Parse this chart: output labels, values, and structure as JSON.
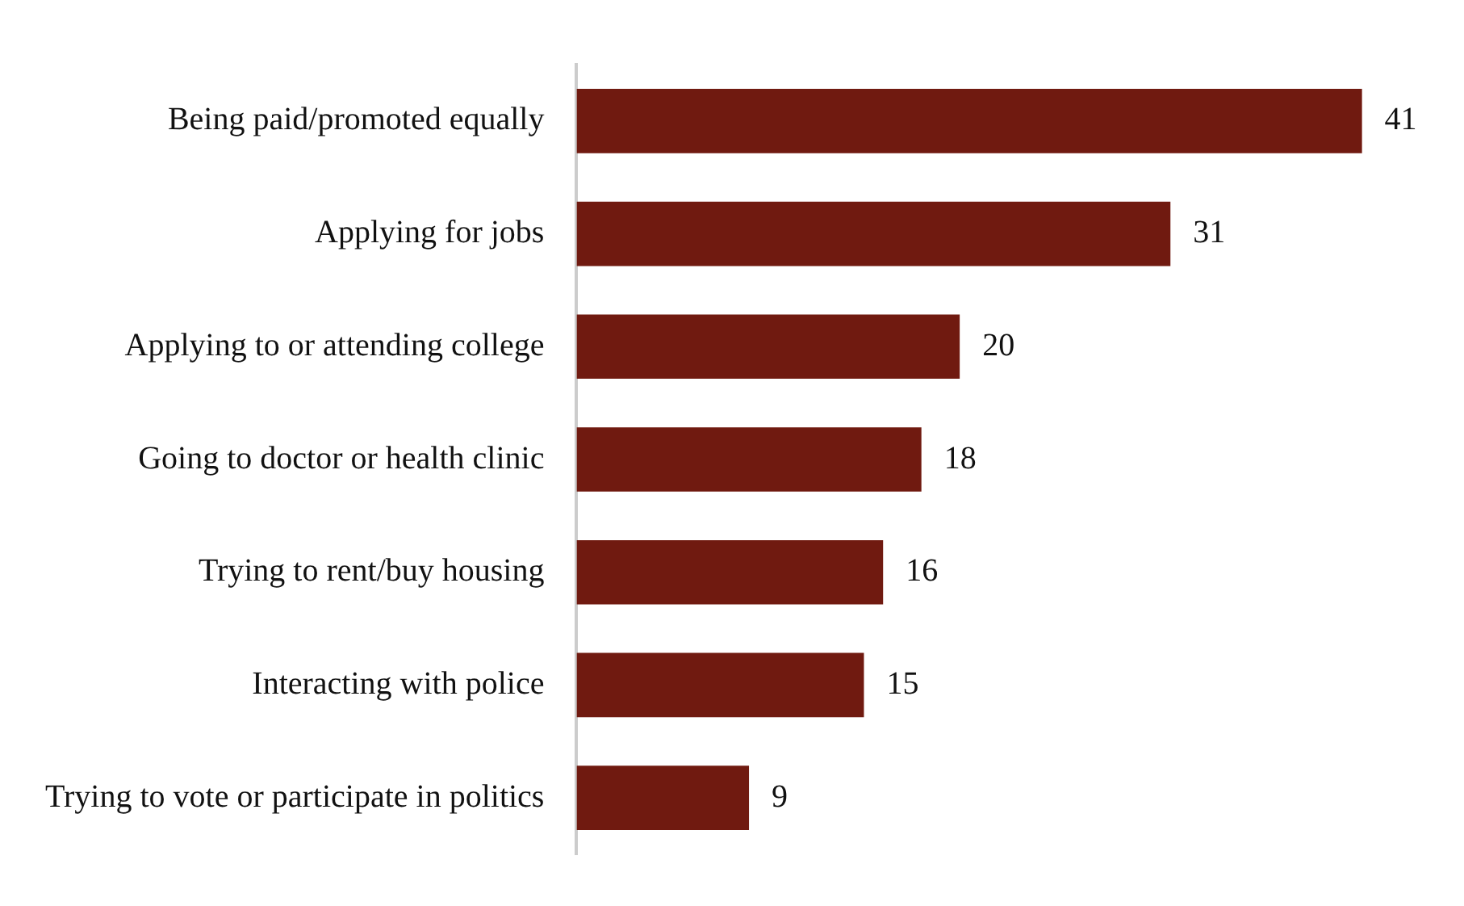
{
  "chart_data": {
    "type": "bar",
    "orientation": "horizontal",
    "categories": [
      "Being paid/promoted equally",
      "Applying for jobs",
      "Applying to or attending college",
      "Going to doctor or health clinic",
      "Trying to rent/buy housing",
      "Interacting with police",
      "Trying to vote or participate in politics"
    ],
    "values": [
      41,
      31,
      20,
      18,
      16,
      15,
      9
    ],
    "color": "#701a10",
    "data_labels": true,
    "grid": false,
    "legend": false
  }
}
